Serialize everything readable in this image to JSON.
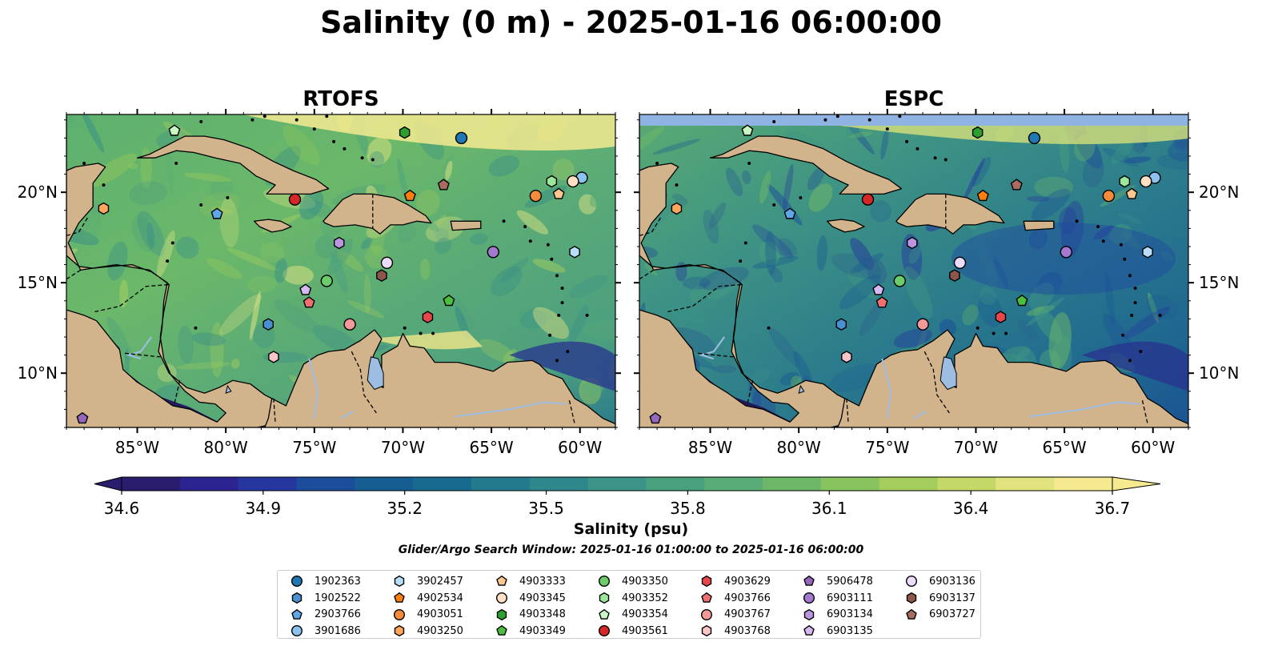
{
  "title": "Salinity (0 m) - 2025-01-16 06:00:00",
  "panels": [
    {
      "title": "RTOFS",
      "variant": "rtofs"
    },
    {
      "title": "ESPC",
      "variant": "espc"
    }
  ],
  "map": {
    "lon_range": [
      -89,
      -58
    ],
    "lat_range": [
      7,
      24.3
    ],
    "lon_ticks": [
      "85°W",
      "80°W",
      "75°W",
      "70°W",
      "65°W",
      "60°W"
    ],
    "lon_tick_values": [
      -85,
      -80,
      -75,
      -70,
      -65,
      -60
    ],
    "lat_ticks": [
      "10°N",
      "15°N",
      "20°N"
    ],
    "lat_tick_values": [
      10,
      15,
      20
    ],
    "land_color": "#d2b48c",
    "lake_color": "#9ebde3",
    "pacific_color": "#25195e"
  },
  "colorbar": {
    "label": "Salinity (psu)",
    "min": 34.6,
    "max": 36.7,
    "ticks": [
      "34.6",
      "34.9",
      "35.2",
      "35.5",
      "35.8",
      "36.1",
      "36.4",
      "36.7"
    ],
    "colors": [
      "#2a1d6e",
      "#2b2390",
      "#25379e",
      "#1b4d9a",
      "#165d92",
      "#186b8f",
      "#227a8c",
      "#2e878a",
      "#3b9487",
      "#48a07f",
      "#59ac75",
      "#6eb768",
      "#88c35f",
      "#a5cd5d",
      "#c3d867",
      "#e0e37e",
      "#f5ea8f"
    ]
  },
  "search_window": "Glider/Argo Search Window: 2025-01-16 01:00:00 to 2025-01-16 06:00:00",
  "floats": [
    {
      "id": "1902363",
      "marker": "circle",
      "color": "#1f77b4",
      "lon": -66.7,
      "lat": 23.0
    },
    {
      "id": "1902522",
      "marker": "hexagon",
      "color": "#4a90d0",
      "lon": -77.6,
      "lat": 12.7
    },
    {
      "id": "2903766",
      "marker": "pentagon",
      "color": "#5ea8e8",
      "lon": -80.5,
      "lat": 18.8
    },
    {
      "id": "3901686",
      "marker": "circle",
      "color": "#8cc2f0",
      "lon": -59.9,
      "lat": 20.8
    },
    {
      "id": "3902457",
      "marker": "hexagon",
      "color": "#b8ddf8",
      "lon": -60.3,
      "lat": 16.7
    },
    {
      "id": "4902534",
      "marker": "pentagon",
      "color": "#ff7f0e",
      "lon": -69.6,
      "lat": 19.8
    },
    {
      "id": "4903051",
      "marker": "circle",
      "color": "#f58b3a",
      "lon": -62.5,
      "lat": 19.8
    },
    {
      "id": "4903250",
      "marker": "hexagon",
      "color": "#ffa65c",
      "lon": -86.9,
      "lat": 19.1
    },
    {
      "id": "4903333",
      "marker": "pentagon",
      "color": "#ffc68f",
      "lon": -61.2,
      "lat": 19.9
    },
    {
      "id": "4903345",
      "marker": "circle",
      "color": "#ffe0c2",
      "lon": -60.4,
      "lat": 20.6
    },
    {
      "id": "4903348",
      "marker": "hexagon",
      "color": "#2ca02c",
      "lon": -69.9,
      "lat": 23.3
    },
    {
      "id": "4903349",
      "marker": "pentagon",
      "color": "#4cbf3e",
      "lon": -67.4,
      "lat": 14.0
    },
    {
      "id": "4903350",
      "marker": "circle",
      "color": "#6ccc6a",
      "lon": -74.3,
      "lat": 15.1
    },
    {
      "id": "4903352",
      "marker": "hexagon",
      "color": "#9be89a",
      "lon": -61.6,
      "lat": 20.6
    },
    {
      "id": "4903354",
      "marker": "pentagon",
      "color": "#c9f7c4",
      "lon": -82.9,
      "lat": 23.4
    },
    {
      "id": "4903561",
      "marker": "circle",
      "color": "#d62728",
      "lon": -76.1,
      "lat": 19.6
    },
    {
      "id": "4903629",
      "marker": "hexagon",
      "color": "#e8474a",
      "lon": -68.6,
      "lat": 13.1
    },
    {
      "id": "4903766",
      "marker": "pentagon",
      "color": "#f07070",
      "lon": -75.3,
      "lat": 13.9
    },
    {
      "id": "4903767",
      "marker": "circle",
      "color": "#f29a9a",
      "lon": -73.0,
      "lat": 12.7
    },
    {
      "id": "4903768",
      "marker": "hexagon",
      "color": "#f8c6c6",
      "lon": -77.3,
      "lat": 10.9
    },
    {
      "id": "5906478",
      "marker": "pentagon",
      "color": "#9467bd",
      "lon": -88.1,
      "lat": 7.5
    },
    {
      "id": "6903111",
      "marker": "circle",
      "color": "#a37ad0",
      "lon": -64.9,
      "lat": 16.7
    },
    {
      "id": "6903134",
      "marker": "hexagon",
      "color": "#bc95e0",
      "lon": -73.6,
      "lat": 17.2
    },
    {
      "id": "6903135",
      "marker": "pentagon",
      "color": "#d6b8f2",
      "lon": -75.5,
      "lat": 14.6
    },
    {
      "id": "6903136",
      "marker": "circle",
      "color": "#ecdcfc",
      "lon": -70.9,
      "lat": 16.1
    },
    {
      "id": "6903137",
      "marker": "hexagon",
      "color": "#8c564b",
      "lon": -71.2,
      "lat": 15.4
    },
    {
      "id": "6903727",
      "marker": "pentagon",
      "color": "#a86d60",
      "lon": -67.7,
      "lat": 20.4
    }
  ]
}
